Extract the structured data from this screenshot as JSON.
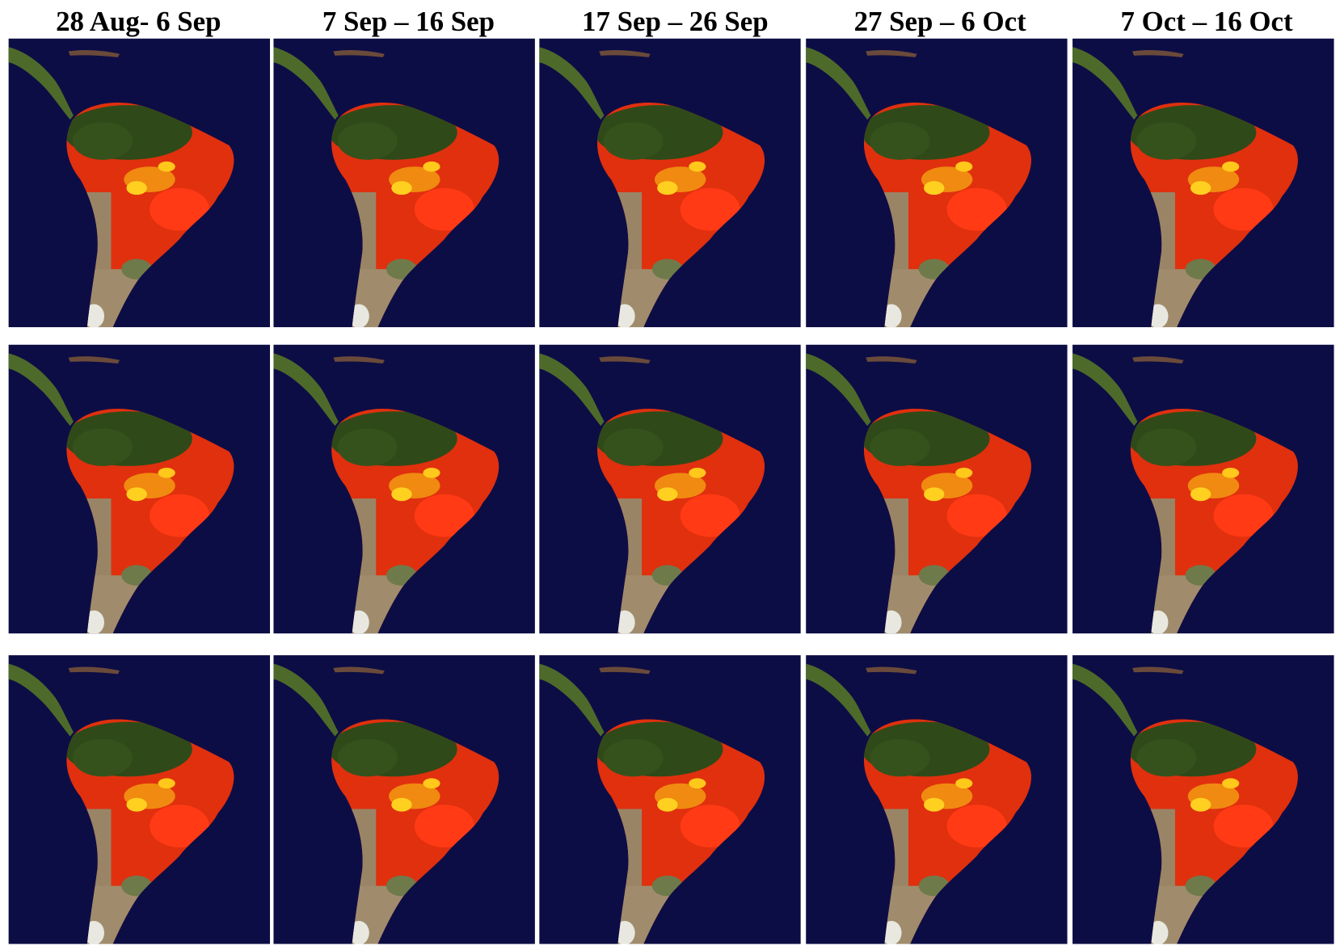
{
  "headers": [
    "28 Aug- 6 Sep",
    "7 Sep – 16 Sep",
    "17 Sep – 26 Sep",
    "27 Sep – 6 Oct",
    "7 Oct – 16 Oct"
  ]
}
